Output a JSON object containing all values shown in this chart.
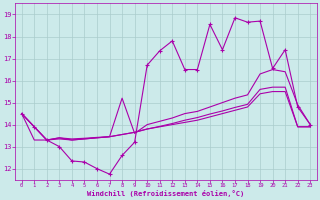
{
  "xlabel": "Windchill (Refroidissement éolien,°C)",
  "xlim": [
    -0.5,
    23.5
  ],
  "ylim": [
    11.5,
    19.5
  ],
  "yticks": [
    12,
    13,
    14,
    15,
    16,
    17,
    18,
    19
  ],
  "xticks": [
    0,
    1,
    2,
    3,
    4,
    5,
    6,
    7,
    8,
    9,
    10,
    11,
    12,
    13,
    14,
    15,
    16,
    17,
    18,
    19,
    20,
    21,
    22,
    23
  ],
  "background_color": "#cceaea",
  "line_color": "#aa00aa",
  "grid_color": "#aacccc",
  "line1_x": [
    0,
    1,
    2,
    3,
    4,
    5,
    6,
    7,
    8,
    9,
    10,
    11,
    12,
    13,
    14,
    15,
    16,
    17,
    18,
    19,
    20,
    21,
    22,
    23
  ],
  "line1_y": [
    14.5,
    13.9,
    13.3,
    13.0,
    12.35,
    12.3,
    12.0,
    11.75,
    12.6,
    13.2,
    16.7,
    17.35,
    17.8,
    16.5,
    16.5,
    18.55,
    17.4,
    18.85,
    18.65,
    18.7,
    16.55,
    17.4,
    14.8,
    14.0
  ],
  "line2_x": [
    0,
    1,
    2,
    3,
    4,
    5,
    6,
    7,
    8,
    9,
    10,
    11,
    12,
    13,
    14,
    15,
    16,
    17,
    18,
    19,
    20,
    21,
    22,
    23
  ],
  "line2_y": [
    14.5,
    13.9,
    13.3,
    13.35,
    13.3,
    13.35,
    13.4,
    13.45,
    15.2,
    13.6,
    14.0,
    14.15,
    14.3,
    14.5,
    14.6,
    14.8,
    15.0,
    15.2,
    15.35,
    16.3,
    16.5,
    16.4,
    14.9,
    14.0
  ],
  "line3_x": [
    0,
    1,
    2,
    3,
    4,
    5,
    6,
    7,
    8,
    9,
    10,
    11,
    12,
    13,
    14,
    15,
    16,
    17,
    18,
    19,
    20,
    21,
    22,
    23
  ],
  "line3_y": [
    14.5,
    13.3,
    13.3,
    13.4,
    13.35,
    13.38,
    13.42,
    13.45,
    13.55,
    13.65,
    13.8,
    13.9,
    14.0,
    14.1,
    14.2,
    14.35,
    14.5,
    14.65,
    14.8,
    15.4,
    15.5,
    15.5,
    13.9,
    13.9
  ],
  "line4_x": [
    0,
    1,
    2,
    3,
    4,
    5,
    6,
    7,
    8,
    9,
    10,
    11,
    12,
    13,
    14,
    15,
    16,
    17,
    18,
    19,
    20,
    21,
    22,
    23
  ],
  "line4_y": [
    14.5,
    13.9,
    13.3,
    13.4,
    13.3,
    13.35,
    13.4,
    13.45,
    13.55,
    13.65,
    13.8,
    13.92,
    14.05,
    14.2,
    14.32,
    14.48,
    14.62,
    14.78,
    14.92,
    15.6,
    15.7,
    15.7,
    13.9,
    13.9
  ]
}
